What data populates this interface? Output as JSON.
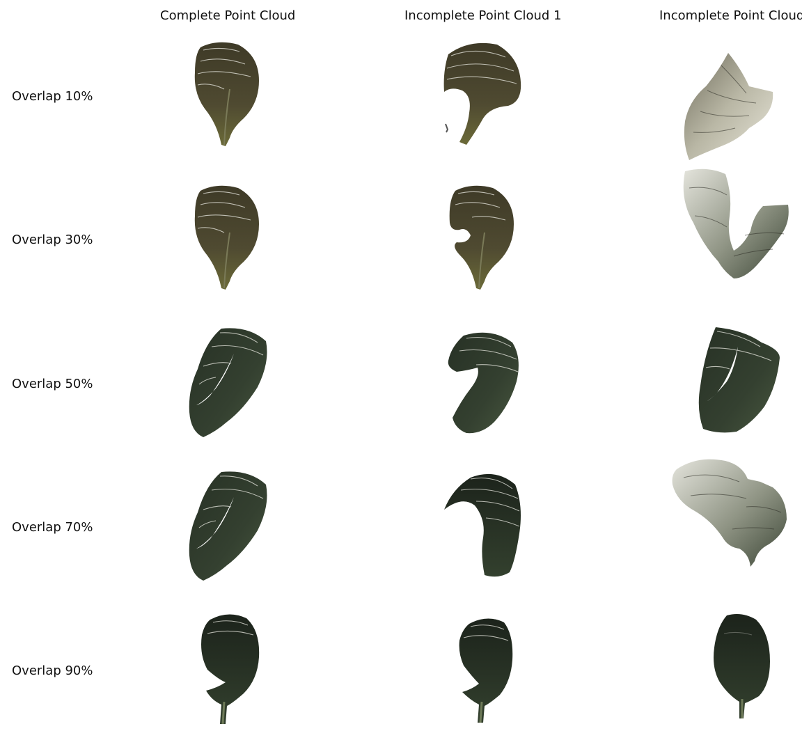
{
  "columns": [
    {
      "title": "Complete Point Cloud"
    },
    {
      "title": "Incomplete Point Cloud 1"
    },
    {
      "title": "Incomplete Point Cloud"
    }
  ],
  "rows": [
    {
      "label": "Overlap 10%"
    },
    {
      "label": "Overlap 30%"
    },
    {
      "label": "Overlap 50%"
    },
    {
      "label": "Overlap 70%"
    },
    {
      "label": "Overlap 90%"
    }
  ],
  "colors": {
    "olive_leaf": "#4b4630",
    "olive_leaf_light": "#6e6848",
    "green_leaf": "#2f3a2c",
    "green_leaf_light": "#4a5944",
    "dark_leaf": "#222c20",
    "pale_leaf": "#c9c6b4"
  }
}
